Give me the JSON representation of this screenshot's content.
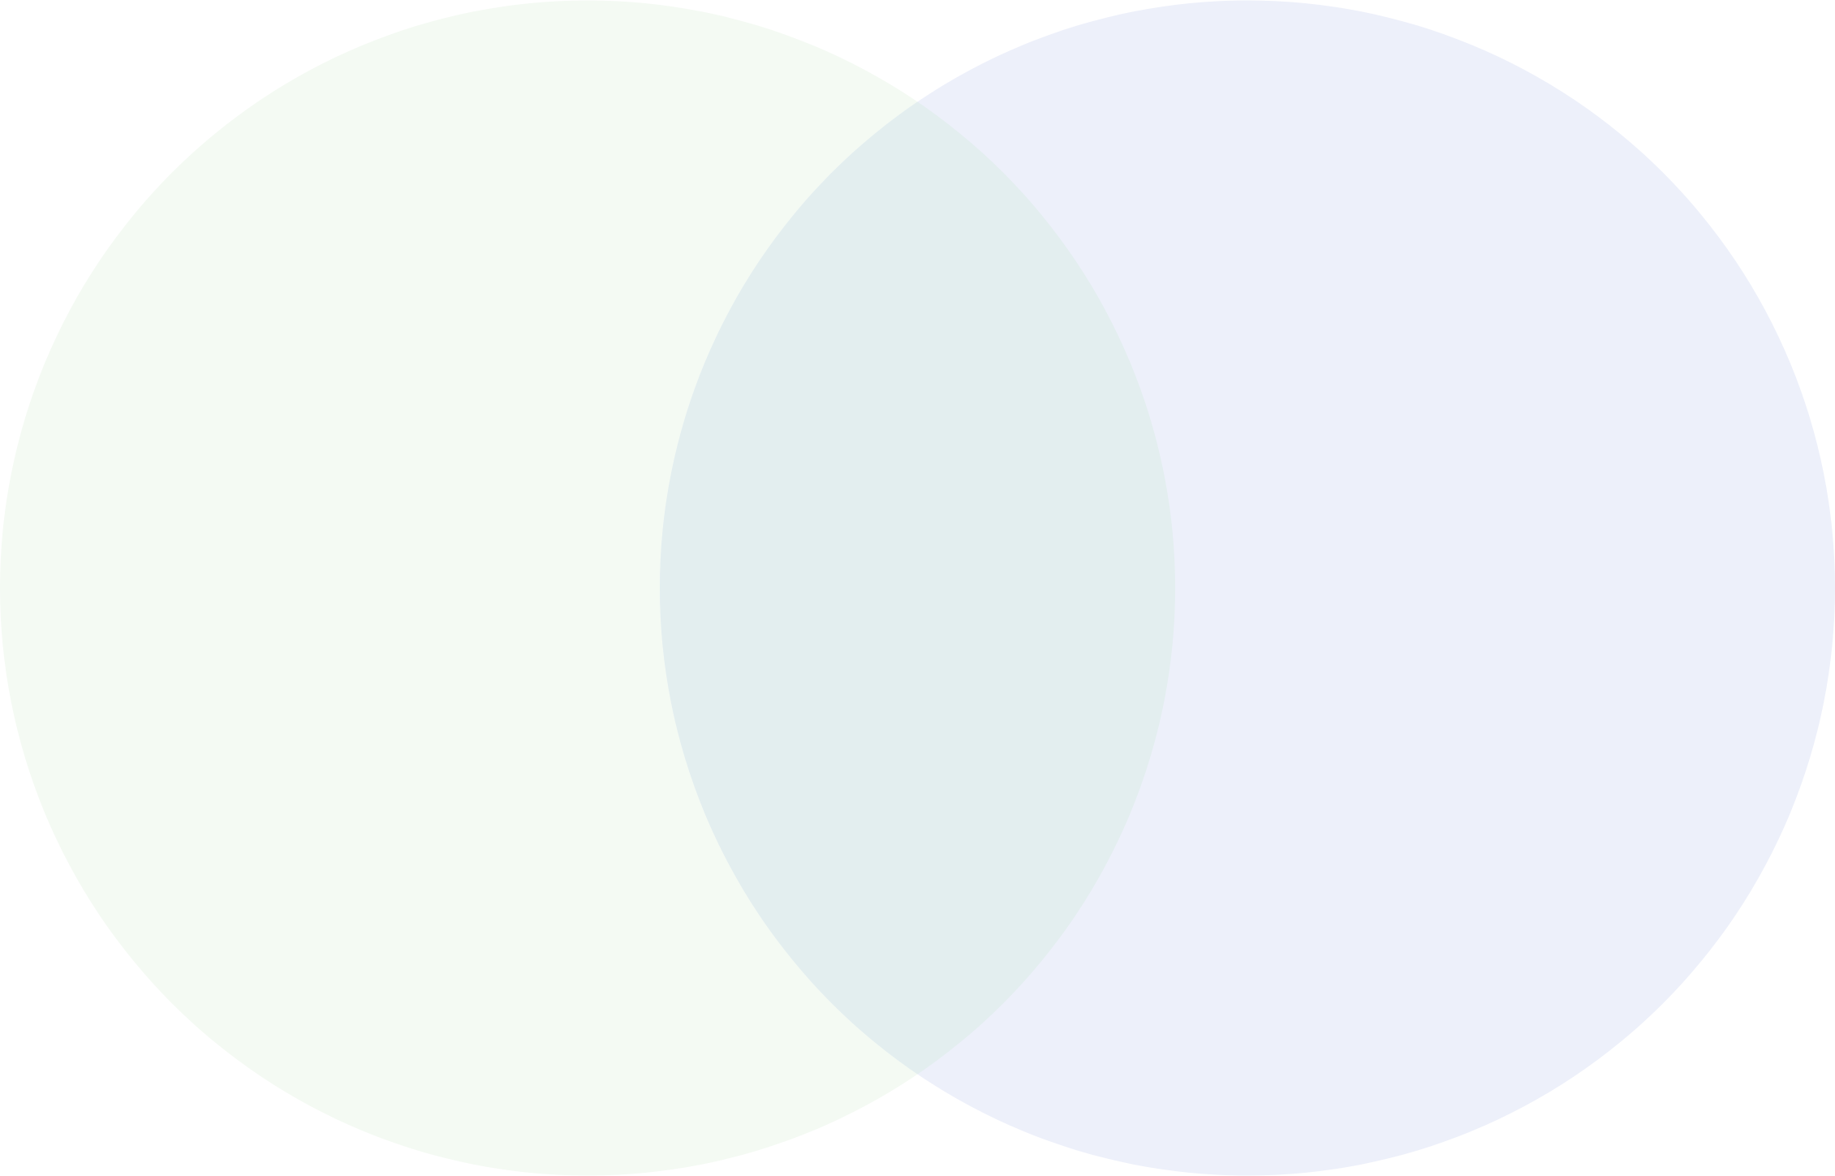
{
  "venn": {
    "sets": [
      {
        "id": "left",
        "fill": "#f4faf3"
      },
      {
        "id": "right",
        "fill": "#edf0fa"
      }
    ],
    "overlap_fill": "#e3eeef",
    "background": "#ffffff"
  }
}
